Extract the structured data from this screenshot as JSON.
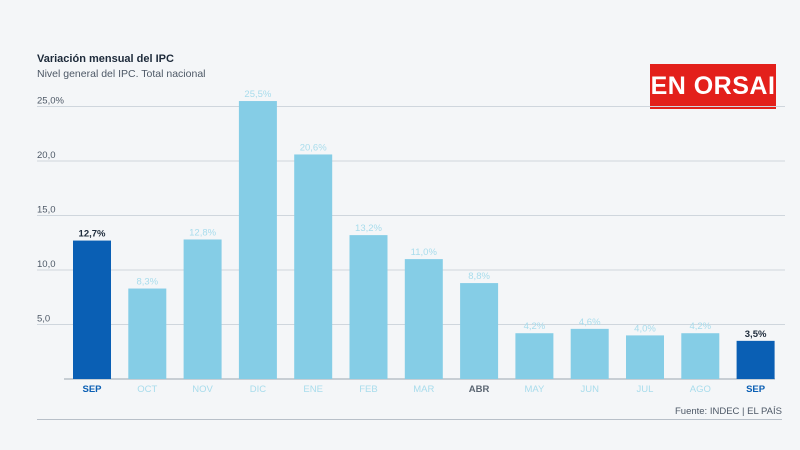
{
  "header": {
    "title": "Variación mensual del IPC",
    "subtitle": "Nivel general del IPC. Total nacional"
  },
  "logo": {
    "text": "EN ORSAI"
  },
  "footer": {
    "source": "Fuente: INDEC | EL PAÍS"
  },
  "colors": {
    "highlight": "#0a5fb4",
    "normal": "#85cde6",
    "grid": "#cfd6dd",
    "axis_text": "#4d5866",
    "muted_label": "#a8dcec",
    "logo_bg": "#e3201b"
  },
  "chart_data": {
    "type": "bar",
    "title": "Variación mensual del IPC",
    "subtitle": "Nivel general del IPC. Total nacional",
    "categories": [
      "SEP",
      "OCT",
      "NOV",
      "DIC",
      "ENE",
      "FEB",
      "MAR",
      "ABR",
      "MAY",
      "JUN",
      "JUL",
      "AGO",
      "SEP"
    ],
    "values": [
      12.7,
      8.3,
      12.8,
      25.5,
      20.6,
      13.2,
      11.0,
      8.8,
      4.2,
      4.6,
      4.0,
      4.2,
      3.5
    ],
    "value_labels": [
      "12,7%",
      "8,3%",
      "12,8%",
      "25,5%",
      "20,6%",
      "13,2%",
      "11,0%",
      "8,8%",
      "4,2%",
      "4,6%",
      "4,0%",
      "4,2%",
      "3,5%"
    ],
    "highlighted": [
      true,
      false,
      false,
      false,
      false,
      false,
      false,
      false,
      false,
      false,
      false,
      false,
      true
    ],
    "bold_category_labels": [
      true,
      false,
      false,
      false,
      false,
      false,
      false,
      true,
      false,
      false,
      false,
      false,
      true
    ],
    "ylim": [
      0,
      27
    ],
    "yticks": [
      5,
      10,
      15,
      20,
      25
    ],
    "ytick_labels": [
      "5,0",
      "10,0",
      "15,0",
      "20,0",
      "25,0%"
    ],
    "xlabel": "",
    "ylabel": "",
    "grid": true,
    "legend": "none"
  }
}
